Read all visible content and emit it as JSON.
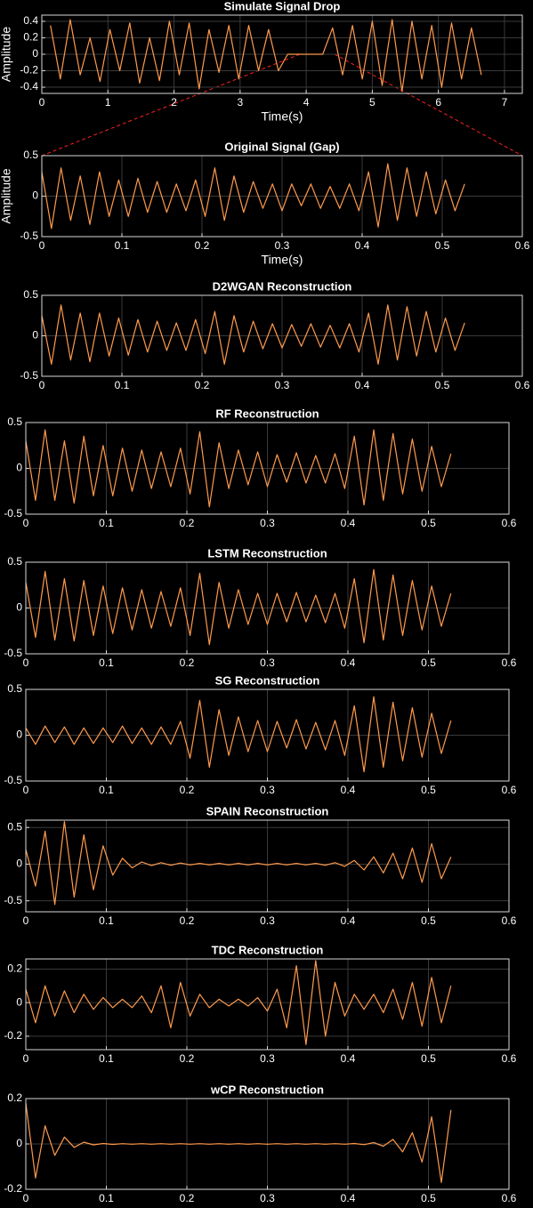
{
  "chart_data": [
    {
      "type": "line",
      "title": "Simulate Signal Drop",
      "xlabel": "Time(s)",
      "ylabel": "Amplitude",
      "color": "#ff9a4d",
      "grid": true,
      "x": [
        0.13,
        0.28,
        0.43,
        0.58,
        0.73,
        0.88,
        1.03,
        1.18,
        1.33,
        1.48,
        1.63,
        1.78,
        1.93,
        2.08,
        2.23,
        2.38,
        2.53,
        2.68,
        2.83,
        2.98,
        3.13,
        3.28,
        3.43,
        3.58,
        3.72,
        4.25,
        4.4,
        4.55,
        4.7,
        4.85,
        5.0,
        5.15,
        5.3,
        5.45,
        5.6,
        5.75,
        5.9,
        6.05,
        6.2,
        6.35,
        6.5,
        6.65
      ],
      "values": [
        0.35,
        -0.3,
        0.42,
        -0.25,
        0.2,
        -0.33,
        0.3,
        -0.2,
        0.38,
        -0.35,
        0.2,
        -0.32,
        0.4,
        -0.25,
        0.38,
        -0.42,
        0.3,
        -0.22,
        0.35,
        -0.3,
        0.35,
        -0.2,
        0.3,
        -0.2,
        0,
        0,
        0.32,
        -0.25,
        0.35,
        -0.3,
        0.4,
        -0.38,
        0.42,
        -0.45,
        0.4,
        -0.3,
        0.35,
        -0.4,
        0.38,
        -0.3,
        0.32,
        -0.25
      ],
      "xlim": [
        0,
        7.27
      ],
      "ylim": [
        -0.475,
        0.475
      ],
      "xticks": [
        0,
        1,
        2,
        3,
        4,
        5,
        6,
        7
      ],
      "yticks": [
        -0.4,
        -0.2,
        0,
        0.2,
        0.4
      ]
    },
    {
      "type": "line",
      "title": "Original Signal (Gap)",
      "xlabel": "Time(s)",
      "ylabel": "Amplitude",
      "color": "#ff9a4d",
      "grid": true,
      "x": [
        0,
        0.012,
        0.024,
        0.036,
        0.048,
        0.06,
        0.072,
        0.084,
        0.096,
        0.108,
        0.12,
        0.132,
        0.144,
        0.156,
        0.168,
        0.18,
        0.192,
        0.204,
        0.216,
        0.228,
        0.24,
        0.252,
        0.264,
        0.276,
        0.288,
        0.3,
        0.312,
        0.324,
        0.336,
        0.348,
        0.36,
        0.372,
        0.384,
        0.396,
        0.408,
        0.42,
        0.432,
        0.444,
        0.456,
        0.468,
        0.48,
        0.492,
        0.504,
        0.516,
        0.528
      ],
      "values": [
        0.3,
        -0.4,
        0.35,
        -0.3,
        0.25,
        -0.35,
        0.3,
        -0.25,
        0.2,
        -0.25,
        0.22,
        -0.2,
        0.18,
        -0.2,
        0.15,
        -0.18,
        0.2,
        -0.25,
        0.35,
        -0.3,
        0.25,
        -0.2,
        0.18,
        -0.15,
        0.15,
        -0.18,
        0.15,
        -0.12,
        0.15,
        -0.15,
        0.12,
        -0.15,
        0.15,
        -0.18,
        0.3,
        -0.38,
        0.4,
        -0.3,
        0.35,
        -0.25,
        0.3,
        -0.22,
        0.2,
        -0.18,
        0.15
      ],
      "xlim": [
        0,
        0.6
      ],
      "ylim": [
        -0.5,
        0.5
      ],
      "xticks": [
        0,
        0.1,
        0.2,
        0.3,
        0.4,
        0.5,
        0.6
      ],
      "yticks": [
        -0.5,
        0,
        0.5
      ]
    },
    {
      "type": "line",
      "title": "D2WGAN Reconstruction",
      "color": "#ff9a4d",
      "grid": true,
      "x": [
        0,
        0.012,
        0.024,
        0.036,
        0.048,
        0.06,
        0.072,
        0.084,
        0.096,
        0.108,
        0.12,
        0.132,
        0.144,
        0.156,
        0.168,
        0.18,
        0.192,
        0.204,
        0.216,
        0.228,
        0.24,
        0.252,
        0.264,
        0.276,
        0.288,
        0.3,
        0.312,
        0.324,
        0.336,
        0.348,
        0.36,
        0.372,
        0.384,
        0.396,
        0.408,
        0.42,
        0.432,
        0.444,
        0.456,
        0.468,
        0.48,
        0.492,
        0.504,
        0.516,
        0.528
      ],
      "values": [
        0.25,
        -0.35,
        0.38,
        -0.3,
        0.28,
        -0.32,
        0.28,
        -0.25,
        0.22,
        -0.24,
        0.2,
        -0.2,
        0.18,
        -0.18,
        0.16,
        -0.18,
        0.2,
        -0.22,
        0.3,
        -0.35,
        0.25,
        -0.2,
        0.18,
        -0.16,
        0.15,
        -0.15,
        0.14,
        -0.13,
        0.15,
        -0.14,
        0.13,
        -0.15,
        0.15,
        -0.2,
        0.28,
        -0.35,
        0.38,
        -0.3,
        0.36,
        -0.25,
        0.3,
        -0.2,
        0.22,
        -0.18,
        0.16
      ],
      "xlim": [
        0,
        0.6
      ],
      "ylim": [
        -0.5,
        0.5
      ],
      "xticks": [
        0,
        0.1,
        0.2,
        0.3,
        0.4,
        0.5,
        0.6
      ],
      "yticks": [
        -0.5,
        0,
        0.5
      ]
    },
    {
      "type": "line",
      "title": "RF Reconstruction",
      "color": "#ff9a4d",
      "grid": true,
      "x": [
        0,
        0.012,
        0.024,
        0.036,
        0.048,
        0.06,
        0.072,
        0.084,
        0.096,
        0.108,
        0.12,
        0.132,
        0.144,
        0.156,
        0.168,
        0.18,
        0.192,
        0.204,
        0.216,
        0.228,
        0.24,
        0.252,
        0.264,
        0.276,
        0.288,
        0.3,
        0.312,
        0.324,
        0.336,
        0.348,
        0.36,
        0.372,
        0.384,
        0.396,
        0.408,
        0.42,
        0.432,
        0.444,
        0.456,
        0.468,
        0.48,
        0.492,
        0.504,
        0.516,
        0.528
      ],
      "values": [
        0.3,
        -0.35,
        0.42,
        -0.35,
        0.3,
        -0.38,
        0.35,
        -0.3,
        0.25,
        -0.3,
        0.22,
        -0.25,
        0.2,
        -0.22,
        0.18,
        -0.2,
        0.22,
        -0.28,
        0.4,
        -0.42,
        0.28,
        -0.22,
        0.2,
        -0.18,
        0.18,
        -0.2,
        0.15,
        -0.15,
        0.17,
        -0.16,
        0.14,
        -0.16,
        0.16,
        -0.22,
        0.35,
        -0.4,
        0.42,
        -0.35,
        0.38,
        -0.28,
        0.32,
        -0.25,
        0.24,
        -0.2,
        0.16
      ],
      "xlim": [
        0,
        0.6
      ],
      "ylim": [
        -0.5,
        0.5
      ],
      "xticks": [
        0,
        0.1,
        0.2,
        0.3,
        0.4,
        0.5,
        0.6
      ],
      "yticks": [
        -0.5,
        0,
        0.5
      ]
    },
    {
      "type": "line",
      "title": "LSTM Reconstruction",
      "color": "#ff9a4d",
      "grid": true,
      "x": [
        0,
        0.012,
        0.024,
        0.036,
        0.048,
        0.06,
        0.072,
        0.084,
        0.096,
        0.108,
        0.12,
        0.132,
        0.144,
        0.156,
        0.168,
        0.18,
        0.192,
        0.204,
        0.216,
        0.228,
        0.24,
        0.252,
        0.264,
        0.276,
        0.288,
        0.3,
        0.312,
        0.324,
        0.336,
        0.348,
        0.36,
        0.372,
        0.384,
        0.396,
        0.408,
        0.42,
        0.432,
        0.444,
        0.456,
        0.468,
        0.48,
        0.492,
        0.504,
        0.516,
        0.528
      ],
      "values": [
        0.28,
        -0.32,
        0.4,
        -0.35,
        0.32,
        -0.36,
        0.3,
        -0.3,
        0.24,
        -0.28,
        0.22,
        -0.24,
        0.2,
        -0.22,
        0.18,
        -0.2,
        0.22,
        -0.3,
        0.38,
        -0.4,
        0.28,
        -0.22,
        0.2,
        -0.18,
        0.16,
        -0.18,
        0.16,
        -0.15,
        0.17,
        -0.15,
        0.14,
        -0.16,
        0.16,
        -0.22,
        0.32,
        -0.38,
        0.42,
        -0.35,
        0.36,
        -0.3,
        0.3,
        -0.24,
        0.24,
        -0.2,
        0.16
      ],
      "xlim": [
        0,
        0.6
      ],
      "ylim": [
        -0.5,
        0.5
      ],
      "xticks": [
        0,
        0.1,
        0.2,
        0.3,
        0.4,
        0.5,
        0.6
      ],
      "yticks": [
        -0.5,
        0,
        0.5
      ]
    },
    {
      "type": "line",
      "title": "SG Reconstruction",
      "color": "#ff9a4d",
      "grid": true,
      "x": [
        0,
        0.012,
        0.024,
        0.036,
        0.048,
        0.06,
        0.072,
        0.084,
        0.096,
        0.108,
        0.12,
        0.132,
        0.144,
        0.156,
        0.168,
        0.18,
        0.192,
        0.204,
        0.216,
        0.228,
        0.24,
        0.252,
        0.264,
        0.276,
        0.288,
        0.3,
        0.312,
        0.324,
        0.336,
        0.348,
        0.36,
        0.372,
        0.384,
        0.396,
        0.408,
        0.42,
        0.432,
        0.444,
        0.456,
        0.468,
        0.48,
        0.492,
        0.504,
        0.516,
        0.528
      ],
      "values": [
        0.08,
        -0.1,
        0.1,
        -0.08,
        0.09,
        -0.1,
        0.08,
        -0.09,
        0.08,
        -0.08,
        0.1,
        -0.09,
        0.08,
        -0.1,
        0.09,
        -0.1,
        0.15,
        -0.25,
        0.38,
        -0.35,
        0.28,
        -0.22,
        0.2,
        -0.18,
        0.16,
        -0.18,
        0.15,
        -0.14,
        0.17,
        -0.15,
        0.14,
        -0.16,
        0.16,
        -0.22,
        0.32,
        -0.4,
        0.42,
        -0.35,
        0.36,
        -0.28,
        0.3,
        -0.24,
        0.24,
        -0.2,
        0.16
      ],
      "xlim": [
        0,
        0.6
      ],
      "ylim": [
        -0.5,
        0.5
      ],
      "xticks": [
        0,
        0.1,
        0.2,
        0.3,
        0.4,
        0.5,
        0.6
      ],
      "yticks": [
        -0.5,
        0,
        0.5
      ]
    },
    {
      "type": "line",
      "title": "SPAIN Reconstruction",
      "color": "#ff9a4d",
      "grid": true,
      "x": [
        0,
        0.012,
        0.024,
        0.036,
        0.048,
        0.06,
        0.072,
        0.084,
        0.096,
        0.108,
        0.12,
        0.132,
        0.144,
        0.156,
        0.168,
        0.18,
        0.192,
        0.204,
        0.216,
        0.228,
        0.24,
        0.252,
        0.264,
        0.276,
        0.288,
        0.3,
        0.312,
        0.324,
        0.336,
        0.348,
        0.36,
        0.372,
        0.384,
        0.396,
        0.408,
        0.42,
        0.432,
        0.444,
        0.456,
        0.468,
        0.48,
        0.492,
        0.504,
        0.516,
        0.528
      ],
      "values": [
        0.2,
        -0.3,
        0.45,
        -0.55,
        0.58,
        -0.45,
        0.4,
        -0.35,
        0.25,
        -0.15,
        0.08,
        -0.05,
        0.03,
        -0.02,
        0.02,
        -0.015,
        0.015,
        -0.01,
        0.01,
        -0.01,
        0.01,
        -0.01,
        0.01,
        -0.01,
        0.01,
        -0.01,
        0.01,
        -0.01,
        0.01,
        -0.01,
        0.01,
        -0.015,
        0.02,
        -0.03,
        0.05,
        -0.08,
        0.1,
        -0.12,
        0.15,
        -0.2,
        0.22,
        -0.25,
        0.28,
        -0.2,
        0.1
      ],
      "xlim": [
        0,
        0.6
      ],
      "ylim": [
        -0.65,
        0.6
      ],
      "xticks": [
        0,
        0.1,
        0.2,
        0.3,
        0.4,
        0.5,
        0.6
      ],
      "yticks": [
        -0.5,
        0,
        0.5
      ]
    },
    {
      "type": "line",
      "title": "TDC Reconstruction",
      "color": "#ff9a4d",
      "grid": true,
      "x": [
        0,
        0.012,
        0.024,
        0.036,
        0.048,
        0.06,
        0.072,
        0.084,
        0.096,
        0.108,
        0.12,
        0.132,
        0.144,
        0.156,
        0.168,
        0.18,
        0.192,
        0.204,
        0.216,
        0.228,
        0.24,
        0.252,
        0.264,
        0.276,
        0.288,
        0.3,
        0.312,
        0.324,
        0.336,
        0.348,
        0.36,
        0.372,
        0.384,
        0.396,
        0.408,
        0.42,
        0.432,
        0.444,
        0.456,
        0.468,
        0.48,
        0.492,
        0.504,
        0.516,
        0.528
      ],
      "values": [
        0.08,
        -0.12,
        0.1,
        -0.08,
        0.07,
        -0.06,
        0.05,
        -0.04,
        0.03,
        -0.03,
        0.02,
        -0.03,
        0.04,
        -0.06,
        0.1,
        -0.15,
        0.12,
        -0.08,
        0.05,
        -0.03,
        0.02,
        -0.02,
        0.02,
        -0.02,
        0.03,
        -0.05,
        0.08,
        -0.15,
        0.22,
        -0.25,
        0.25,
        -0.2,
        0.12,
        -0.08,
        0.05,
        -0.04,
        0.05,
        -0.06,
        0.08,
        -0.1,
        0.12,
        -0.14,
        0.15,
        -0.12,
        0.1
      ],
      "xlim": [
        0,
        0.6
      ],
      "ylim": [
        -0.28,
        0.26
      ],
      "xticks": [
        0,
        0.1,
        0.2,
        0.3,
        0.4,
        0.5,
        0.6
      ],
      "yticks": [
        -0.2,
        0,
        0.2
      ]
    },
    {
      "type": "line",
      "title": "wCP Reconstruction",
      "color": "#ff9a4d",
      "grid": true,
      "x": [
        0,
        0.012,
        0.024,
        0.036,
        0.048,
        0.06,
        0.072,
        0.084,
        0.096,
        0.108,
        0.12,
        0.132,
        0.144,
        0.156,
        0.168,
        0.18,
        0.192,
        0.204,
        0.216,
        0.228,
        0.24,
        0.252,
        0.264,
        0.276,
        0.288,
        0.3,
        0.312,
        0.324,
        0.336,
        0.348,
        0.36,
        0.372,
        0.384,
        0.396,
        0.408,
        0.42,
        0.432,
        0.444,
        0.456,
        0.468,
        0.48,
        0.492,
        0.504,
        0.516,
        0.528
      ],
      "values": [
        0.18,
        -0.15,
        0.08,
        -0.05,
        0.03,
        -0.015,
        0.008,
        -0.004,
        0.002,
        -0.002,
        0.001,
        -0.001,
        0.001,
        -0.001,
        0.001,
        -0.001,
        0.001,
        -0.001,
        0.001,
        -0.001,
        0.001,
        -0.001,
        0.001,
        -0.001,
        0.001,
        -0.001,
        0.001,
        -0.001,
        0.001,
        -0.001,
        0.001,
        -0.001,
        0.001,
        -0.001,
        0.002,
        -0.003,
        0.006,
        -0.01,
        0.02,
        -0.035,
        0.05,
        -0.08,
        0.12,
        -0.17,
        0.15
      ],
      "xlim": [
        0,
        0.6
      ],
      "ylim": [
        -0.2,
        0.2
      ],
      "xticks": [
        0,
        0.1,
        0.2,
        0.3,
        0.4,
        0.5,
        0.6
      ],
      "yticks": [
        -0.2,
        0,
        0.2
      ]
    }
  ]
}
